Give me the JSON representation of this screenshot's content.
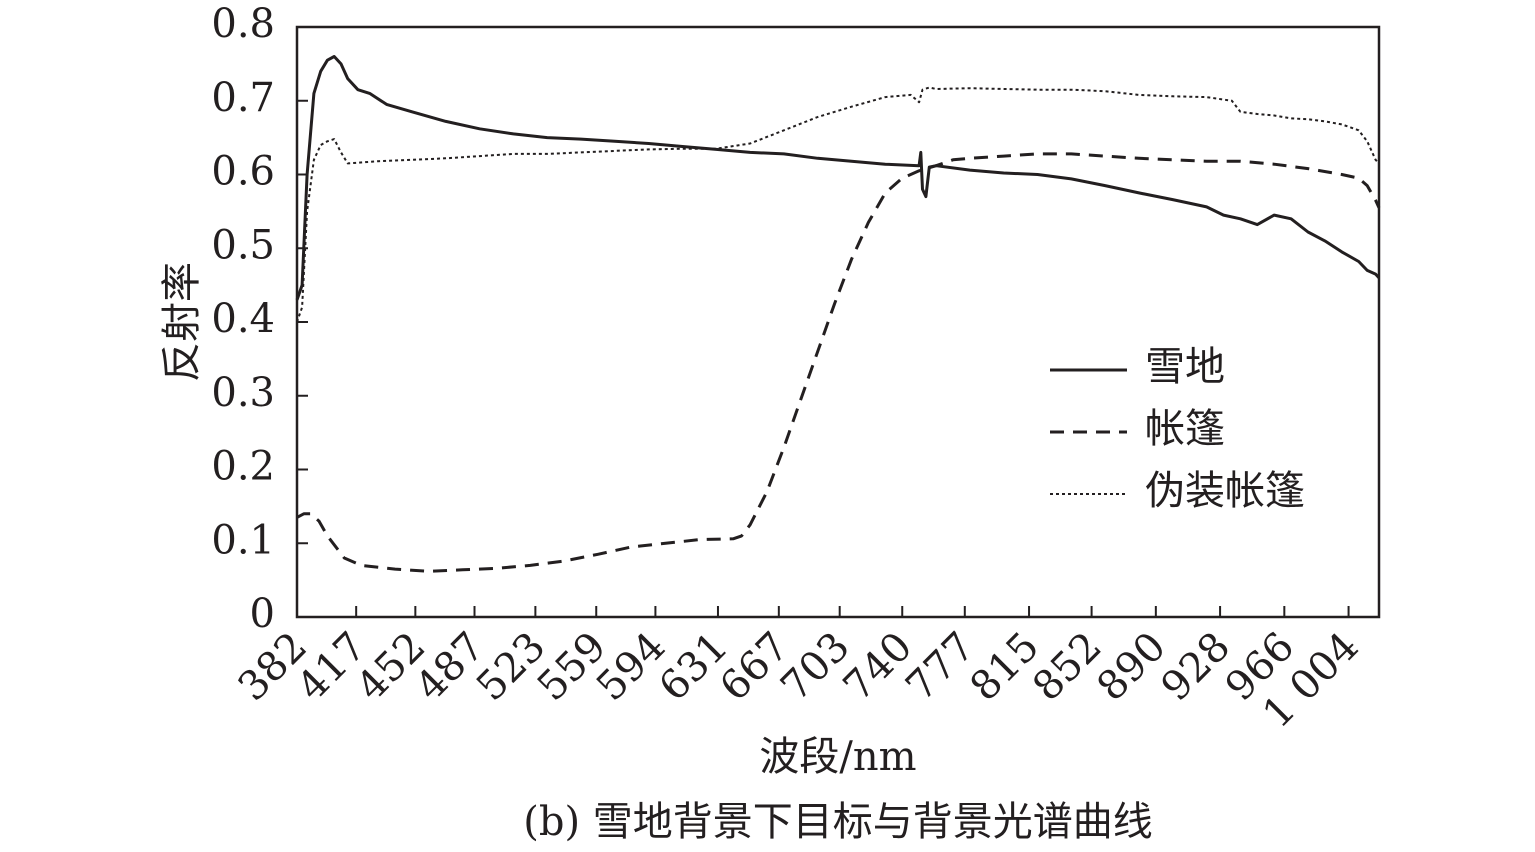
{
  "chart_data": {
    "type": "line",
    "caption": "(b) 雪地背景下目标与背景光谱曲线",
    "xlabel": "波段/nm",
    "ylabel": "反射率",
    "xlim": [
      382,
      1022
    ],
    "ylim": [
      0,
      0.8
    ],
    "grid": false,
    "legend_position": "center-right",
    "x_ticks": [
      {
        "value": 382,
        "label": "382"
      },
      {
        "value": 417,
        "label": "417"
      },
      {
        "value": 452,
        "label": "452"
      },
      {
        "value": 487,
        "label": "487"
      },
      {
        "value": 523,
        "label": "523"
      },
      {
        "value": 559,
        "label": "559"
      },
      {
        "value": 594,
        "label": "594"
      },
      {
        "value": 631,
        "label": "631"
      },
      {
        "value": 667,
        "label": "667"
      },
      {
        "value": 703,
        "label": "703"
      },
      {
        "value": 740,
        "label": "740"
      },
      {
        "value": 777,
        "label": "777"
      },
      {
        "value": 815,
        "label": "815"
      },
      {
        "value": 852,
        "label": "852"
      },
      {
        "value": 890,
        "label": "890"
      },
      {
        "value": 928,
        "label": "928"
      },
      {
        "value": 966,
        "label": "966"
      },
      {
        "value": 1004,
        "label": "1 004"
      }
    ],
    "y_ticks": [
      {
        "value": 0,
        "label": "0"
      },
      {
        "value": 0.1,
        "label": "0.1"
      },
      {
        "value": 0.2,
        "label": "0.2"
      },
      {
        "value": 0.3,
        "label": "0.3"
      },
      {
        "value": 0.4,
        "label": "0.4"
      },
      {
        "value": 0.5,
        "label": "0.5"
      },
      {
        "value": 0.6,
        "label": "0.6"
      },
      {
        "value": 0.7,
        "label": "0.7"
      },
      {
        "value": 0.8,
        "label": "0.8"
      }
    ],
    "series": [
      {
        "name": "雪地",
        "style": "solid",
        "color": "#231f20",
        "x": [
          382,
          385,
          388,
          392,
          396,
          400,
          404,
          408,
          412,
          418,
          425,
          435,
          450,
          470,
          490,
          510,
          530,
          550,
          570,
          590,
          610,
          630,
          650,
          670,
          690,
          710,
          730,
          750,
          751,
          752,
          754,
          756,
          760,
          780,
          800,
          820,
          840,
          860,
          880,
          900,
          920,
          930,
          940,
          950,
          960,
          970,
          980,
          990,
          1000,
          1010,
          1015,
          1020,
          1022
        ],
        "y": [
          0.43,
          0.45,
          0.6,
          0.71,
          0.74,
          0.755,
          0.76,
          0.75,
          0.73,
          0.715,
          0.71,
          0.695,
          0.685,
          0.672,
          0.662,
          0.655,
          0.65,
          0.648,
          0.645,
          0.642,
          0.638,
          0.634,
          0.63,
          0.628,
          0.622,
          0.618,
          0.614,
          0.612,
          0.63,
          0.58,
          0.57,
          0.61,
          0.612,
          0.606,
          0.602,
          0.6,
          0.594,
          0.585,
          0.575,
          0.566,
          0.556,
          0.545,
          0.54,
          0.532,
          0.545,
          0.54,
          0.522,
          0.51,
          0.495,
          0.482,
          0.47,
          0.465,
          0.46
        ]
      },
      {
        "name": "帐篷",
        "style": "dashed",
        "color": "#231f20",
        "x": [
          382,
          386,
          390,
          395,
          400,
          410,
          420,
          440,
          460,
          480,
          500,
          520,
          540,
          560,
          580,
          600,
          620,
          640,
          645,
          650,
          660,
          670,
          680,
          690,
          700,
          710,
          720,
          730,
          740,
          750,
          760,
          770,
          780,
          800,
          820,
          840,
          860,
          880,
          900,
          920,
          940,
          960,
          980,
          1000,
          1010,
          1015,
          1020,
          1022
        ],
        "y": [
          0.135,
          0.14,
          0.14,
          0.13,
          0.11,
          0.08,
          0.07,
          0.065,
          0.062,
          0.064,
          0.066,
          0.07,
          0.076,
          0.085,
          0.095,
          0.1,
          0.105,
          0.106,
          0.11,
          0.125,
          0.17,
          0.23,
          0.295,
          0.36,
          0.425,
          0.485,
          0.535,
          0.575,
          0.595,
          0.605,
          0.612,
          0.62,
          0.622,
          0.625,
          0.628,
          0.628,
          0.625,
          0.622,
          0.62,
          0.618,
          0.618,
          0.614,
          0.608,
          0.6,
          0.595,
          0.585,
          0.565,
          0.555
        ]
      },
      {
        "name": "伪装帐篷",
        "style": "dotted",
        "color": "#231f20",
        "x": [
          382,
          385,
          388,
          392,
          396,
          400,
          404,
          408,
          412,
          418,
          430,
          450,
          470,
          490,
          510,
          530,
          550,
          570,
          590,
          610,
          630,
          650,
          670,
          690,
          710,
          730,
          745,
          750,
          752,
          756,
          760,
          780,
          800,
          820,
          840,
          860,
          880,
          900,
          920,
          935,
          940,
          950,
          960,
          970,
          980,
          990,
          1000,
          1010,
          1015,
          1020,
          1022
        ],
        "y": [
          0.4,
          0.42,
          0.55,
          0.62,
          0.64,
          0.645,
          0.648,
          0.63,
          0.615,
          0.616,
          0.618,
          0.62,
          0.622,
          0.625,
          0.628,
          0.628,
          0.63,
          0.632,
          0.634,
          0.635,
          0.635,
          0.642,
          0.66,
          0.678,
          0.692,
          0.705,
          0.708,
          0.698,
          0.715,
          0.718,
          0.716,
          0.717,
          0.716,
          0.715,
          0.715,
          0.713,
          0.708,
          0.706,
          0.705,
          0.7,
          0.685,
          0.682,
          0.68,
          0.676,
          0.675,
          0.672,
          0.668,
          0.66,
          0.645,
          0.62,
          0.615
        ]
      }
    ]
  }
}
